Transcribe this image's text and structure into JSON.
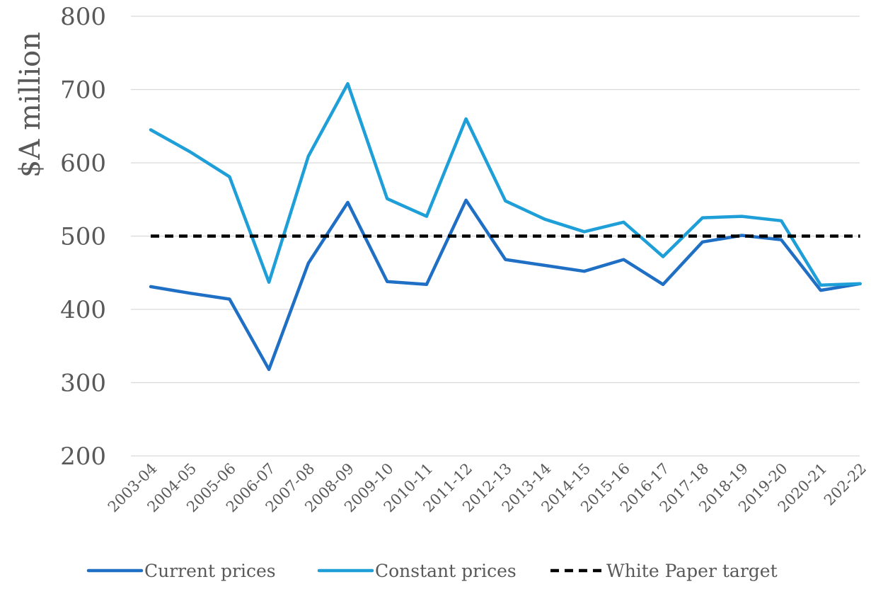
{
  "chart_data": {
    "type": "line",
    "title": "",
    "xlabel": "",
    "ylabel": "$A million",
    "ylim": [
      200,
      800
    ],
    "yticks": [
      200,
      300,
      400,
      500,
      600,
      700,
      800
    ],
    "grid": true,
    "legend_position": "bottom",
    "categories": [
      "2003-04",
      "2004-05",
      "2005-06",
      "2006-07",
      "2007-08",
      "2008-09",
      "2009-10",
      "2010-11",
      "2011-12",
      "2012-13",
      "2013-14",
      "2014-15",
      "2015-16",
      "2016-17",
      "2017-18",
      "2018-19",
      "2019-20",
      "2020-21",
      "202-22"
    ],
    "series": [
      {
        "name": "Current prices",
        "color": "#1f6fc5",
        "dash": "solid",
        "values": [
          431,
          422,
          414,
          318,
          463,
          546,
          438,
          434,
          549,
          468,
          460,
          452,
          468,
          434,
          492,
          501,
          495,
          426,
          435
        ]
      },
      {
        "name": "Constant prices",
        "color": "#1e9fd8",
        "dash": "solid",
        "values": [
          645,
          615,
          581,
          437,
          609,
          708,
          551,
          527,
          660,
          548,
          523,
          506,
          519,
          472,
          525,
          527,
          521,
          433,
          435
        ]
      },
      {
        "name": "White Paper target",
        "color": "#000000",
        "dash": "dashed",
        "values": [
          500,
          500,
          500,
          500,
          500,
          500,
          500,
          500,
          500,
          500,
          500,
          500,
          500,
          500,
          500,
          500,
          500,
          500,
          500
        ]
      }
    ]
  }
}
